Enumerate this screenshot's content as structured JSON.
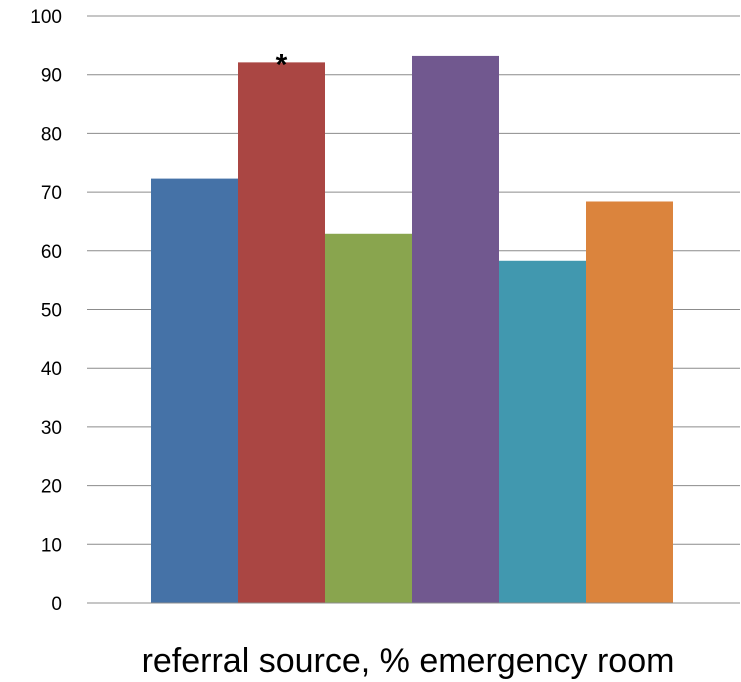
{
  "chart_data": {
    "type": "bar",
    "categories": [
      "",
      "",
      "",
      "",
      "",
      ""
    ],
    "values": [
      72.3,
      92.1,
      62.9,
      93.2,
      58.3,
      68.4
    ],
    "colors": [
      "#4572A7",
      "#AA4643",
      "#89A54E",
      "#71588F",
      "#4198AF",
      "#DB843D"
    ],
    "annotations": [
      {
        "index": 1,
        "text": "*"
      }
    ],
    "title": "",
    "xlabel": "referral source, % emergency room",
    "ylabel": "",
    "ylim": [
      0,
      100
    ],
    "yticks": [
      "0",
      "10",
      "20",
      "30",
      "40",
      "50",
      "60",
      "70",
      "80",
      "90",
      "100"
    ],
    "grid": true,
    "legend": "none"
  }
}
